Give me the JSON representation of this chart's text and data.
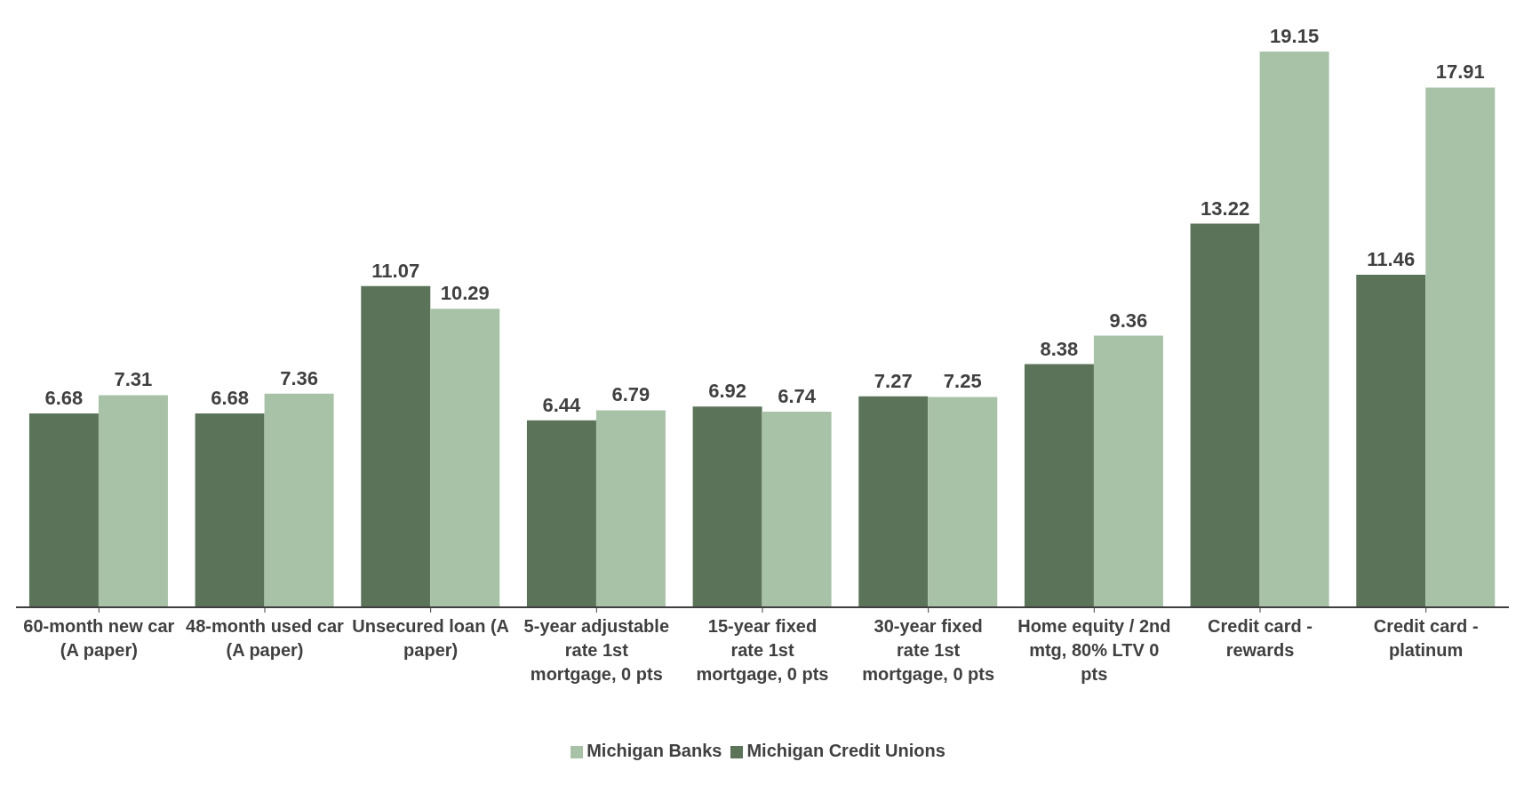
{
  "chart_data": {
    "type": "bar",
    "categories": [
      "60-month new car (A paper)",
      "48-month used car (A paper)",
      "Unsecured loan (A paper)",
      "5-year adjustable rate 1st mortgage, 0 pts",
      "15-year fixed rate 1st mortgage, 0 pts",
      "30-year fixed rate 1st mortgage, 0 pts",
      "Home equity / 2nd mtg, 80% LTV 0 pts",
      "Credit card - rewards",
      "Credit card - platinum"
    ],
    "series": [
      {
        "name": "Michigan Credit Unions",
        "color": "#5a7359",
        "values": [
          6.68,
          6.68,
          11.07,
          6.44,
          6.92,
          7.27,
          8.38,
          13.22,
          11.46
        ]
      },
      {
        "name": "Michigan Banks",
        "color": "#a8c2a8",
        "values": [
          7.31,
          7.36,
          10.29,
          6.79,
          6.74,
          7.25,
          9.36,
          19.15,
          17.91
        ]
      }
    ],
    "data_labels": true,
    "grid": false,
    "legend": "bottom"
  }
}
